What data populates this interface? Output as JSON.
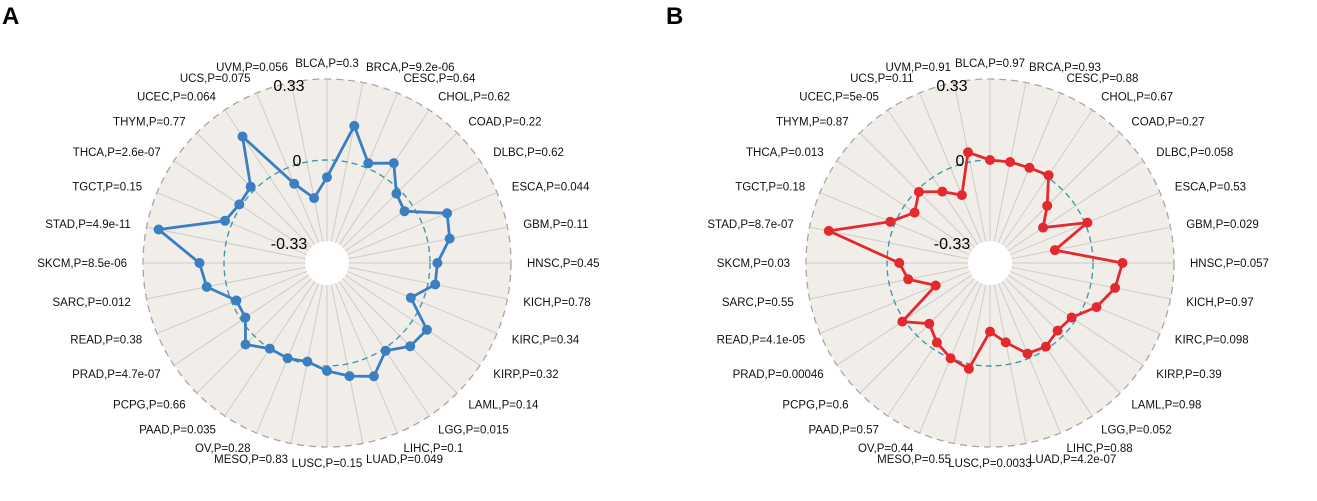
{
  "colors": {
    "panel_A": "#3a7fc1",
    "panel_B": "#e3292e",
    "disc": "#f1eeea",
    "spoke": "#cfcbc6",
    "outer_ring": "#a9a6a2",
    "zero_ring": "#3f9aa8"
  },
  "chart_data": [
    {
      "type": "radar",
      "panel": "A",
      "ring_labels": {
        "top": "0.33",
        "zero": "0",
        "bottom": "-0.33"
      },
      "rlim": [
        -0.33,
        0.33
      ],
      "categories": [
        "BLCA",
        "BRCA",
        "CESC",
        "CHOL",
        "COAD",
        "DLBC",
        "ESCA",
        "GBM",
        "HNSC",
        "KICH",
        "KIRC",
        "KIRP",
        "LAML",
        "LGG",
        "LIHC",
        "LUAD",
        "LUSC",
        "MESO",
        "OV",
        "PAAD",
        "PCPG",
        "PRAD",
        "READ",
        "SARC",
        "SKCM",
        "STAD",
        "TGCT",
        "THCA",
        "THYM",
        "UCEC",
        "UCS",
        "UVM"
      ],
      "labels": [
        "BLCA,P=0.3",
        "BRCA,P=9.2e-06",
        "CESC,P=0.64",
        "CHOL,P=0.62",
        "COAD,P=0.22",
        "DLBC,P=0.62",
        "ESCA,P=0.044",
        "GBM,P=0.11",
        "HNSC,P=0.45",
        "KICH,P=0.78",
        "KIRC,P=0.34",
        "KIRP,P=0.32",
        "LAML,P=0.14",
        "LGG,P=0.015",
        "LIHC,P=0.1",
        "LUAD,P=0.049",
        "LUSC,P=0.15",
        "MESO,P=0.83",
        "OV,P=0.28",
        "PAAD,P=0.035",
        "PCPG,P=0.66",
        "PRAD,P=4.7e-07",
        "READ,P=0.38",
        "SARC,P=0.012",
        "SKCM,P=8.5e-06",
        "STAD,P=4.9e-11",
        "TGCT,P=0.15",
        "THCA,P=2.6e-07",
        "THYM,P=0.77",
        "UCEC,P=0.064",
        "UCS,P=0.075",
        "UVM,P=0.056"
      ],
      "values": [
        -0.07,
        0.15,
        0.02,
        0.07,
        -0.02,
        -0.04,
        0.11,
        0.09,
        0.03,
        0.03,
        -0.05,
        0.07,
        0.06,
        0.01,
        0.08,
        0.05,
        0.02,
        -0.01,
        0.0,
        0.0,
        0.05,
        -0.02,
        -0.02,
        0.08,
        0.1,
        0.28,
        0.03,
        0.01,
        0.02,
        0.2,
        -0.07,
        -0.15
      ]
    },
    {
      "type": "radar",
      "panel": "B",
      "ring_labels": {
        "top": "0.33",
        "zero": "0",
        "bottom": "-0.33"
      },
      "rlim": [
        -0.33,
        0.33
      ],
      "categories": [
        "BLCA",
        "BRCA",
        "CESC",
        "CHOL",
        "COAD",
        "DLBC",
        "ESCA",
        "GBM",
        "HNSC",
        "KICH",
        "KIRC",
        "KIRP",
        "LAML",
        "LGG",
        "LIHC",
        "LUAD",
        "LUSC",
        "MESO",
        "OV",
        "PAAD",
        "PCPG",
        "PRAD",
        "READ",
        "SARC",
        "SKCM",
        "STAD",
        "TGCT",
        "THCA",
        "THYM",
        "UCEC",
        "UCS",
        "UVM"
      ],
      "labels": [
        "BLCA,P=0.97",
        "BRCA,P=0.93",
        "CESC,P=0.88",
        "CHOL,P=0.67",
        "COAD,P=0.27",
        "DLBC,P=0.058",
        "ESCA,P=0.53",
        "GBM,P=0.029",
        "HNSC,P=0.057",
        "KICH,P=0.97",
        "KIRC,P=0.098",
        "KIRP,P=0.39",
        "LAML,P=0.98",
        "LGG,P=0.052",
        "LIHC,P=0.88",
        "LUAD,P=4.2e-07",
        "LUSC,P=0.0033",
        "MESO,P=0.55",
        "OV,P=0.44",
        "PAAD,P=0.57",
        "PCPG,P=0.6",
        "PRAD,P=0.00046",
        "READ,P=4.1e-05",
        "SARC,P=0.55",
        "SKCM,P=0.03",
        "STAD,P=8.7e-07",
        "TGCT,P=0.18",
        "THCA,P=0.013",
        "THYM,P=0.87",
        "UCEC,P=5e-05",
        "UCS,P=0.11",
        "UVM,P=0.91"
      ],
      "values": [
        0.0,
        0.0,
        0.0,
        0.01,
        -0.09,
        -0.16,
        0.01,
        -0.15,
        0.12,
        0.1,
        0.05,
        -0.02,
        -0.03,
        -0.01,
        -0.02,
        -0.09,
        -0.14,
        0.02,
        0.0,
        -0.03,
        -0.07,
        0.01,
        -0.18,
        -0.08,
        -0.05,
        0.25,
        0.02,
        -0.05,
        -0.01,
        -0.07,
        -0.12,
        0.04
      ]
    }
  ]
}
